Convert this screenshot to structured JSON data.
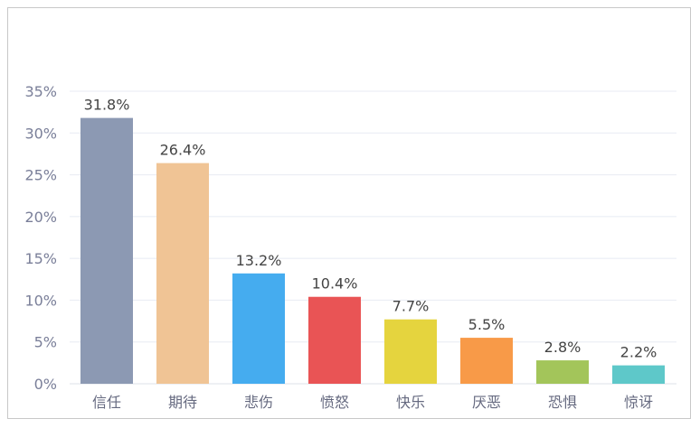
{
  "chart_data": {
    "type": "bar",
    "title": "",
    "xlabel": "",
    "ylabel": "",
    "categories": [
      "信任",
      "期待",
      "悲伤",
      "愤怒",
      "快乐",
      "厌恶",
      "恐惧",
      "惊讶"
    ],
    "values": [
      31.8,
      26.4,
      13.2,
      10.4,
      7.7,
      5.5,
      2.8,
      2.2
    ],
    "data_labels": [
      "31.8%",
      "26.4%",
      "13.2%",
      "10.4%",
      "7.7%",
      "5.5%",
      "2.8%",
      "2.2%"
    ],
    "colors": [
      "#8c99b3",
      "#f0c495",
      "#45acef",
      "#e95455",
      "#e5d43e",
      "#f89a48",
      "#a3c55a",
      "#5ec8c9"
    ],
    "ylim": [
      0,
      35
    ],
    "yticks": [
      "0%",
      "5%",
      "10%",
      "15%",
      "20%",
      "25%",
      "30%",
      "35%"
    ],
    "grid": true,
    "legend": "none"
  }
}
